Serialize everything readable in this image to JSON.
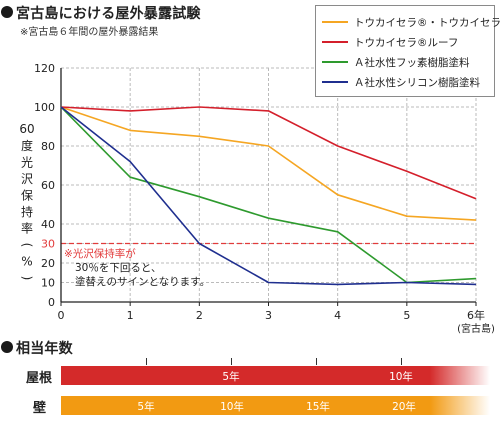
{
  "header": {
    "title": "宮古島における屋外暴露試験",
    "subtitle": "※宮古島６年間の屋外暴露結果"
  },
  "colors": {
    "orange": "#f5a623",
    "red": "#d41f2b",
    "green": "#2e9a2e",
    "blue": "#1f2f8f",
    "threshold": "#e23b3b",
    "grid": "#bbbbbb"
  },
  "chart_data": {
    "type": "line",
    "title": "",
    "ylabel": "60度光沢保持率(%)",
    "xlabel": "",
    "x": [
      0,
      1,
      2,
      3,
      4,
      5,
      6
    ],
    "x_tick_labels": [
      "0",
      "1",
      "2",
      "3",
      "4",
      "5",
      "6年"
    ],
    "x_extra_label": "(宮古島)",
    "ylim": [
      0,
      120
    ],
    "y_ticks": [
      0,
      10,
      20,
      30,
      40,
      60,
      80,
      100,
      120
    ],
    "y_tick_labels": [
      "0",
      "10",
      "20",
      "30",
      "40",
      "60",
      "80",
      "100",
      "120"
    ],
    "grid": true,
    "legend_position": "top-right",
    "series": [
      {
        "name": "トウカイセラ®・トウカイセラ®Ⅱ",
        "color": "#f5a623",
        "values": [
          100,
          88,
          85,
          80,
          55,
          44,
          42
        ]
      },
      {
        "name": "トウカイセラ®ルーフ",
        "color": "#d41f2b",
        "values": [
          100,
          98,
          100,
          98,
          80,
          67,
          53
        ]
      },
      {
        "name": "Ａ社水性フッ素樹脂塗料",
        "color": "#2e9a2e",
        "values": [
          100,
          64,
          54,
          43,
          36,
          10,
          12
        ]
      },
      {
        "name": "Ａ社水性シリコン樹脂塗料",
        "color": "#1f2f8f",
        "values": [
          100,
          72,
          30,
          10,
          9,
          10,
          9
        ]
      }
    ],
    "threshold": {
      "value": 30,
      "label": "30"
    },
    "annotation": [
      "※光沢保持率が",
      "30％を下回ると、",
      "塗替えのサインとなります。"
    ]
  },
  "equivalent": {
    "title": "相当年数",
    "rows": [
      {
        "label": "屋根",
        "color": "#d42a2a",
        "ticks": [
          "5年",
          "10年"
        ]
      },
      {
        "label": "壁",
        "color": "#f29a12",
        "ticks": [
          "5年",
          "10年",
          "15年",
          "20年"
        ]
      }
    ]
  }
}
